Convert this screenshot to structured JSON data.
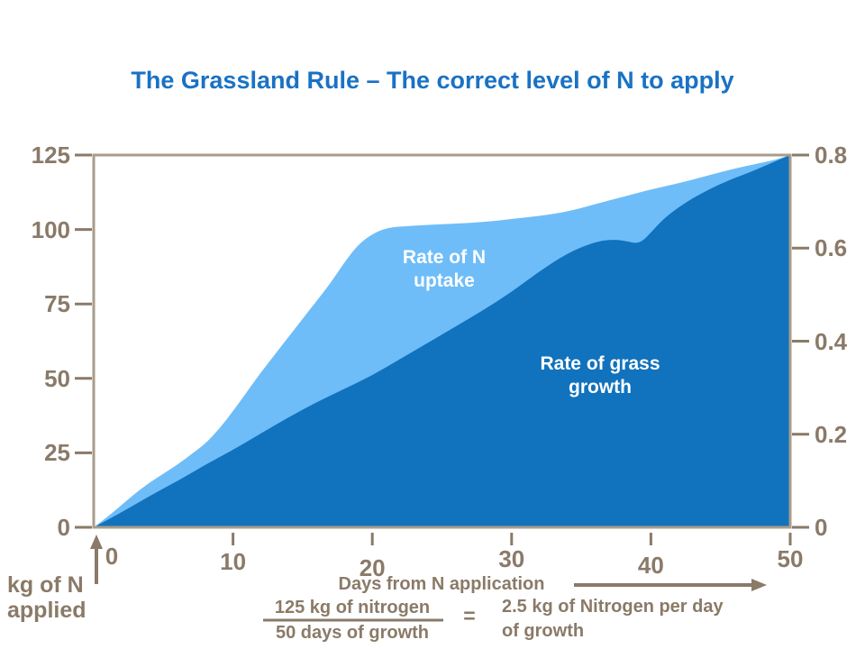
{
  "title": "The Grassland Rule – The correct level of N to apply",
  "colors": {
    "title": "#1a72c4",
    "axis_text": "#8a7a68",
    "axis_line": "#a99c8b",
    "uptake_fill": "#6ebdf8",
    "growth_fill": "#1172bd",
    "chart_label_text": "#ffffff"
  },
  "chart_data": {
    "type": "area",
    "title": "The Grassland Rule – The correct level of N to apply",
    "x": {
      "label": "Days from N application",
      "min": 0,
      "max": 50,
      "ticks": [
        0,
        10,
        20,
        30,
        40,
        50
      ],
      "tick_labels": [
        "0",
        "10",
        "20",
        "30",
        "40",
        "50"
      ]
    },
    "y_left": {
      "label": "kg of N applied",
      "min": 0,
      "max": 125,
      "ticks": [
        0,
        25,
        50,
        75,
        100,
        125
      ],
      "tick_labels": [
        "0",
        "25",
        "50",
        "75",
        "100",
        "125"
      ]
    },
    "y_right": {
      "min": 0,
      "max": 0.8,
      "ticks": [
        0,
        0.2,
        0.4,
        0.6,
        0.8
      ],
      "tick_labels": [
        "0",
        "0.2",
        "0.4",
        "0.6",
        "0.8"
      ]
    },
    "grid": false,
    "series": [
      {
        "name": "Rate of N uptake",
        "fill": "#6ebdf8",
        "points": [
          [
            0,
            0
          ],
          [
            1,
            3.5
          ],
          [
            2,
            7.5
          ],
          [
            3,
            11.5
          ],
          [
            4,
            15
          ],
          [
            5,
            18
          ],
          [
            6,
            21
          ],
          [
            7,
            24.5
          ],
          [
            8,
            28
          ],
          [
            9,
            33
          ],
          [
            10,
            39
          ],
          [
            11,
            45.5
          ],
          [
            12,
            52
          ],
          [
            13,
            58
          ],
          [
            14,
            64
          ],
          [
            15,
            70
          ],
          [
            16,
            76
          ],
          [
            17,
            82
          ],
          [
            18,
            89
          ],
          [
            19,
            95
          ],
          [
            20,
            98.5
          ],
          [
            21,
            100.5
          ],
          [
            22,
            101
          ],
          [
            24,
            101.5
          ],
          [
            26,
            102
          ],
          [
            28,
            102.5
          ],
          [
            30,
            103.5
          ],
          [
            32,
            104.5
          ],
          [
            34,
            106
          ],
          [
            36,
            108.5
          ],
          [
            38,
            111
          ],
          [
            40,
            113.5
          ],
          [
            42,
            115.5
          ],
          [
            44,
            118
          ],
          [
            46,
            120.5
          ],
          [
            48,
            122.5
          ],
          [
            49,
            123.5
          ],
          [
            50,
            125
          ]
        ]
      },
      {
        "name": "Rate of grass growth",
        "fill": "#1172bd",
        "points": [
          [
            0,
            0
          ],
          [
            2,
            5
          ],
          [
            4,
            10.5
          ],
          [
            6,
            15.5
          ],
          [
            8,
            21
          ],
          [
            10,
            26
          ],
          [
            12,
            31.5
          ],
          [
            14,
            37
          ],
          [
            16,
            42
          ],
          [
            18,
            46.5
          ],
          [
            20,
            51
          ],
          [
            22,
            56.5
          ],
          [
            24,
            62
          ],
          [
            26,
            67.5
          ],
          [
            28,
            73
          ],
          [
            30,
            79
          ],
          [
            32,
            86
          ],
          [
            34,
            92
          ],
          [
            35.5,
            95
          ],
          [
            36.5,
            96.3
          ],
          [
            37.5,
            96.6
          ],
          [
            38.3,
            96
          ],
          [
            39,
            95.3
          ],
          [
            39.5,
            96.5
          ],
          [
            40,
            99
          ],
          [
            41,
            104
          ],
          [
            42,
            107.5
          ],
          [
            43,
            110.5
          ],
          [
            44,
            113
          ],
          [
            45,
            115.3
          ],
          [
            46,
            117.3
          ],
          [
            47,
            119
          ],
          [
            48,
            121
          ],
          [
            49,
            123
          ],
          [
            50,
            125
          ]
        ]
      }
    ]
  },
  "annotations": {
    "uptake_label_line1": "Rate of N",
    "uptake_label_line2": "uptake",
    "growth_label_line1": "Rate of grass",
    "growth_label_line2": "growth",
    "y_axis_label_line1": "kg of N",
    "y_axis_label_line2": "applied",
    "x_axis_label": "Days from N application"
  },
  "formula": {
    "numerator": "125 kg of nitrogen",
    "denominator": "50 days of growth",
    "equals": "=",
    "result_line1": "2.5 kg of Nitrogen per day",
    "result_line2": "of growth"
  }
}
